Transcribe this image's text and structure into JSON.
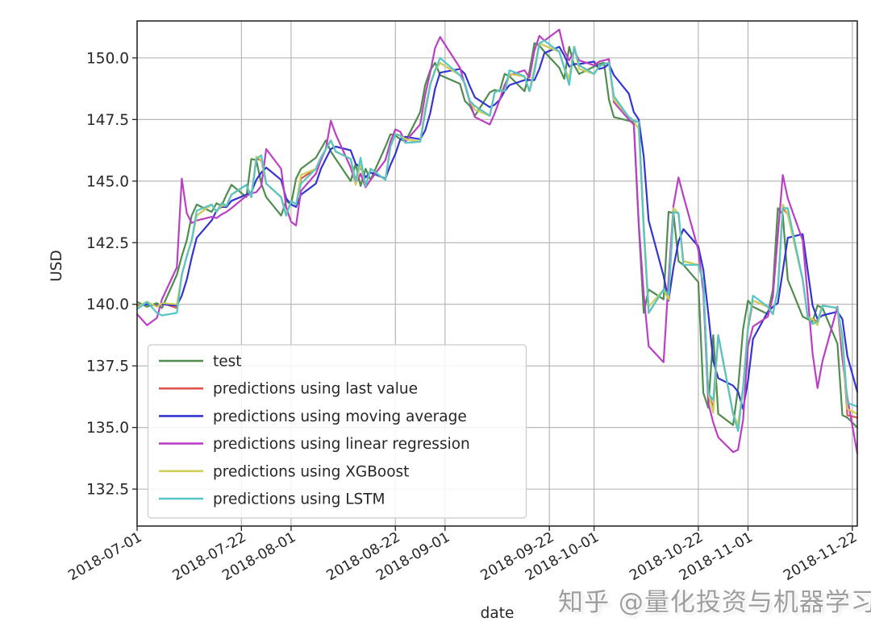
{
  "watermark": {
    "text": "知乎 @量化投资与机器学习",
    "color": "#9e9e9e"
  },
  "chart_data": {
    "type": "line",
    "title": "",
    "xlabel": "date",
    "ylabel": "USD",
    "grid": true,
    "legend_location": "lower-left",
    "style": {
      "background": "#ffffff",
      "grid_color": "#b0b0b0",
      "spine_color": "#2a2a2a",
      "text_color": "#262626"
    },
    "x_axis": {
      "label": "date",
      "encoding": "day offset from 2018-07-01",
      "range": [
        0,
        145
      ],
      "ticks": [
        {
          "day": 0,
          "label": "2018-07-01"
        },
        {
          "day": 21,
          "label": "2018-07-22"
        },
        {
          "day": 31,
          "label": "2018-08-01"
        },
        {
          "day": 52,
          "label": "2018-08-22"
        },
        {
          "day": 62,
          "label": "2018-09-01"
        },
        {
          "day": 83,
          "label": "2018-09-22"
        },
        {
          "day": 92,
          "label": "2018-10-01"
        },
        {
          "day": 113,
          "label": "2018-10-22"
        },
        {
          "day": 123,
          "label": "2018-11-01"
        },
        {
          "day": 144,
          "label": "2018-11-22"
        }
      ]
    },
    "y_axis": {
      "label": "USD",
      "range": [
        131.0,
        151.5
      ],
      "ticks": [
        {
          "value": 132.5,
          "label": "132.5"
        },
        {
          "value": 135.0,
          "label": "135.0"
        },
        {
          "value": 137.5,
          "label": "137.5"
        },
        {
          "value": 140.0,
          "label": "140.0"
        },
        {
          "value": 142.5,
          "label": "142.5"
        },
        {
          "value": 145.0,
          "label": "145.0"
        },
        {
          "value": 147.5,
          "label": "147.5"
        },
        {
          "value": 150.0,
          "label": "150.0"
        }
      ]
    },
    "days": [
      0,
      2,
      4,
      5,
      8,
      9,
      10,
      11,
      12,
      15,
      16,
      17,
      18,
      19,
      22,
      23,
      24,
      25,
      26,
      29,
      30,
      31,
      32,
      33,
      36,
      37,
      38,
      39,
      40,
      43,
      44,
      45,
      46,
      47,
      50,
      51,
      52,
      53,
      54,
      57,
      58,
      59,
      60,
      61,
      65,
      66,
      67,
      68,
      71,
      72,
      73,
      74,
      75,
      78,
      79,
      80,
      81,
      82,
      85,
      86,
      87,
      88,
      89,
      92,
      93,
      94,
      95,
      96,
      99,
      100,
      101,
      102,
      103,
      106,
      107,
      108,
      109,
      110,
      113,
      114,
      115,
      116,
      117,
      120,
      121,
      122,
      123,
      124,
      127,
      128,
      129,
      130,
      131,
      134,
      135,
      136,
      137,
      138,
      141,
      142,
      143,
      145
    ],
    "series": [
      {
        "key": "test",
        "name": "test",
        "color": "#4e8d4e",
        "values": [
          140.1,
          139.9,
          140.05,
          139.85,
          141.2,
          141.95,
          142.6,
          143.6,
          144.05,
          143.75,
          144.1,
          144.0,
          144.45,
          144.85,
          144.35,
          145.9,
          145.85,
          144.9,
          144.35,
          143.6,
          144.2,
          144.05,
          145.1,
          145.5,
          145.95,
          146.3,
          146.65,
          146.2,
          145.9,
          145.0,
          145.7,
          144.8,
          145.5,
          145.05,
          146.4,
          146.9,
          146.85,
          146.7,
          146.6,
          147.8,
          148.9,
          149.5,
          149.8,
          149.3,
          148.95,
          148.25,
          148.05,
          147.65,
          148.6,
          148.7,
          148.65,
          149.35,
          149.25,
          148.65,
          149.45,
          150.6,
          150.5,
          150.25,
          149.6,
          149.15,
          150.45,
          149.7,
          149.35,
          149.65,
          149.75,
          149.8,
          148.3,
          147.6,
          147.45,
          147.4,
          143.2,
          139.65,
          140.6,
          140.2,
          143.75,
          143.7,
          141.75,
          141.6,
          140.9,
          136.4,
          135.8,
          138.75,
          135.55,
          135.1,
          136.6,
          139.0,
          140.15,
          139.9,
          139.6,
          140.6,
          143.9,
          143.65,
          141.0,
          139.5,
          139.4,
          139.3,
          139.95,
          139.85,
          138.4,
          135.5,
          135.4,
          135.0
        ]
      },
      {
        "key": "last-value",
        "name": "predictions using last value",
        "color": "#e0534a",
        "values": [
          139.9,
          140.1,
          139.9,
          140.05,
          139.85,
          141.2,
          141.95,
          142.6,
          143.6,
          144.05,
          143.75,
          144.1,
          144.0,
          144.45,
          144.85,
          144.35,
          145.9,
          145.85,
          144.9,
          144.35,
          143.6,
          144.2,
          144.05,
          145.1,
          145.5,
          145.95,
          146.3,
          146.65,
          146.2,
          145.9,
          145.0,
          145.7,
          144.8,
          145.5,
          145.05,
          146.4,
          146.9,
          146.85,
          146.7,
          146.6,
          147.8,
          148.9,
          149.5,
          149.8,
          149.3,
          148.95,
          148.25,
          148.05,
          147.65,
          148.6,
          148.7,
          148.65,
          149.35,
          149.25,
          148.65,
          149.45,
          150.6,
          150.5,
          150.25,
          149.6,
          149.15,
          150.45,
          149.7,
          149.35,
          149.65,
          149.75,
          149.8,
          148.3,
          147.6,
          147.45,
          147.4,
          143.2,
          139.65,
          140.6,
          140.2,
          143.75,
          143.7,
          141.75,
          141.6,
          140.9,
          136.4,
          135.8,
          138.75,
          135.55,
          135.1,
          136.6,
          139.0,
          140.15,
          139.9,
          139.6,
          140.6,
          143.9,
          143.65,
          141.0,
          139.5,
          139.4,
          139.3,
          139.95,
          139.85,
          138.4,
          135.5,
          135.4
        ]
      },
      {
        "key": "moving-average",
        "name": "predictions using moving average",
        "color": "#3434d0",
        "values": [
          139.95,
          140.0,
          139.95,
          140.0,
          139.95,
          140.35,
          141.0,
          141.9,
          142.7,
          143.4,
          143.8,
          143.95,
          143.95,
          144.2,
          144.45,
          144.55,
          145.05,
          145.35,
          145.55,
          145.05,
          144.3,
          144.05,
          143.95,
          144.45,
          144.9,
          145.5,
          145.9,
          146.3,
          146.4,
          146.25,
          145.7,
          145.55,
          145.15,
          145.35,
          145.1,
          145.65,
          146.1,
          146.7,
          146.8,
          146.7,
          147.05,
          147.75,
          148.75,
          149.4,
          149.55,
          149.35,
          148.85,
          148.4,
          148.0,
          148.1,
          148.3,
          148.65,
          148.9,
          149.1,
          149.1,
          149.1,
          149.55,
          150.2,
          150.45,
          150.1,
          149.65,
          149.75,
          149.75,
          149.85,
          149.55,
          149.6,
          149.75,
          149.3,
          148.55,
          147.8,
          147.5,
          146.0,
          143.4,
          141.15,
          140.15,
          141.5,
          142.55,
          143.05,
          142.35,
          141.4,
          139.65,
          137.7,
          137.0,
          136.7,
          136.45,
          135.75,
          136.9,
          138.6,
          139.7,
          139.9,
          140.05,
          141.35,
          142.7,
          142.85,
          141.4,
          139.95,
          139.4,
          139.55,
          139.7,
          139.4,
          137.9,
          136.45
        ]
      },
      {
        "key": "linear-regression",
        "name": "predictions using linear regression",
        "color": "#bb3fc4",
        "values": [
          139.6,
          139.15,
          139.45,
          140.2,
          141.5,
          145.1,
          143.7,
          143.3,
          143.4,
          143.55,
          143.5,
          143.65,
          143.75,
          143.9,
          144.4,
          144.5,
          144.55,
          144.8,
          146.3,
          145.5,
          143.95,
          143.35,
          143.2,
          144.6,
          145.3,
          145.85,
          146.3,
          147.45,
          146.9,
          145.55,
          144.9,
          145.3,
          144.75,
          145.05,
          145.85,
          146.6,
          147.1,
          147.0,
          146.6,
          147.3,
          148.5,
          149.4,
          150.4,
          150.85,
          149.6,
          148.9,
          148.2,
          147.6,
          147.3,
          147.75,
          148.3,
          148.9,
          149.3,
          149.5,
          149.2,
          150.3,
          150.9,
          150.7,
          151.15,
          150.3,
          149.9,
          150.3,
          149.9,
          149.7,
          149.85,
          149.9,
          149.95,
          148.2,
          147.5,
          147.3,
          143.3,
          140.4,
          138.3,
          137.65,
          141.0,
          144.0,
          145.15,
          144.4,
          142.2,
          140.5,
          136.0,
          135.2,
          134.6,
          134.0,
          134.1,
          135.3,
          138.3,
          139.1,
          139.5,
          140.3,
          142.8,
          145.25,
          144.3,
          142.6,
          140.4,
          138.0,
          136.6,
          137.7,
          139.9,
          137.8,
          136.2,
          133.95
        ]
      },
      {
        "key": "xgboost",
        "name": "predictions using XGBoost",
        "color": "#cfcf58",
        "values": [
          139.9,
          140.1,
          139.9,
          140.05,
          140.0,
          141.2,
          141.95,
          142.6,
          143.6,
          144.05,
          143.75,
          144.0,
          144.0,
          144.45,
          144.85,
          144.35,
          146.0,
          145.85,
          144.9,
          144.35,
          143.6,
          144.2,
          144.05,
          145.25,
          145.5,
          145.95,
          146.3,
          146.65,
          146.2,
          145.9,
          144.85,
          145.7,
          144.8,
          145.5,
          145.05,
          146.4,
          146.9,
          146.85,
          146.7,
          146.6,
          147.95,
          148.9,
          149.5,
          149.8,
          149.3,
          148.95,
          148.25,
          147.9,
          147.65,
          148.6,
          148.7,
          148.65,
          149.35,
          149.25,
          148.65,
          149.6,
          150.6,
          150.5,
          150.25,
          149.6,
          149.15,
          150.45,
          149.55,
          149.35,
          149.65,
          149.75,
          149.8,
          148.3,
          147.6,
          147.45,
          147.1,
          143.2,
          139.9,
          140.6,
          140.2,
          143.9,
          143.7,
          141.75,
          141.6,
          140.9,
          136.4,
          135.6,
          138.75,
          135.55,
          135.1,
          136.6,
          139.2,
          140.15,
          139.9,
          139.6,
          140.6,
          144.05,
          143.65,
          141.0,
          139.5,
          139.4,
          139.15,
          139.95,
          139.85,
          138.4,
          135.75,
          135.55
        ]
      },
      {
        "key": "lstm",
        "name": "predictions using LSTM",
        "color": "#55c5c5",
        "values": [
          139.8,
          140.1,
          139.65,
          139.55,
          139.65,
          141.2,
          141.95,
          142.6,
          143.8,
          144.05,
          143.75,
          144.1,
          144.0,
          144.45,
          144.85,
          144.35,
          145.9,
          146.05,
          144.9,
          144.35,
          143.6,
          144.2,
          144.05,
          144.9,
          145.5,
          145.95,
          146.3,
          146.65,
          146.2,
          145.9,
          145.0,
          145.95,
          144.8,
          145.5,
          145.05,
          146.4,
          146.9,
          146.85,
          146.55,
          146.6,
          147.8,
          148.9,
          149.5,
          150.0,
          149.3,
          148.95,
          148.25,
          148.05,
          147.65,
          148.6,
          148.7,
          148.65,
          149.5,
          149.25,
          148.65,
          149.45,
          150.6,
          150.7,
          150.25,
          149.6,
          148.9,
          150.45,
          149.7,
          149.35,
          149.65,
          149.75,
          149.8,
          148.45,
          147.6,
          147.45,
          147.4,
          143.0,
          139.65,
          140.6,
          140.4,
          143.75,
          143.7,
          141.6,
          141.6,
          140.9,
          136.4,
          136.1,
          138.75,
          135.55,
          134.85,
          136.6,
          139.0,
          140.35,
          139.9,
          139.6,
          140.6,
          143.9,
          143.9,
          141.0,
          139.5,
          139.2,
          139.3,
          139.95,
          139.85,
          138.7,
          136.0,
          135.85
        ]
      }
    ]
  }
}
